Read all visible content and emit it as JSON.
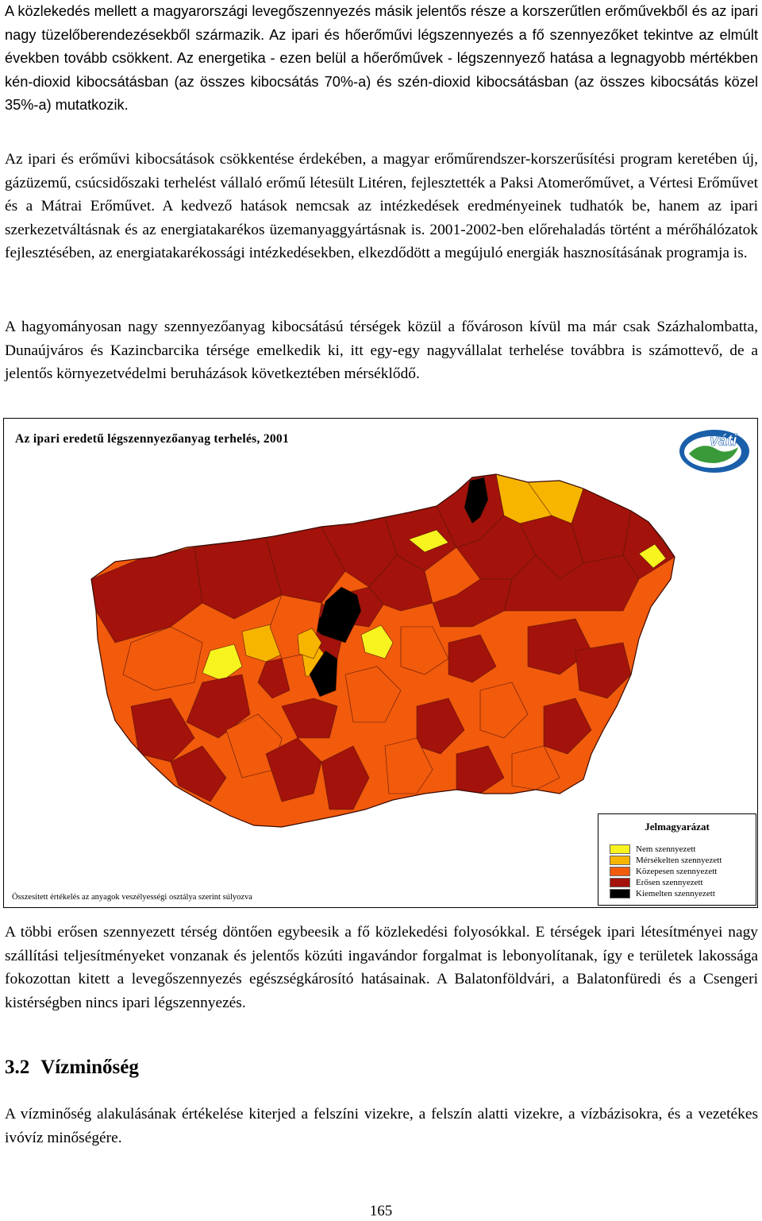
{
  "paragraphs": {
    "p1": "A közlekedés mellett a magyarországi levegőszennyezés másik jelentős része a korszerűtlen erőművekből és az ipari nagy tüzelőberendezésekből származik. Az ipari és hőerőművi légszennyezés a fő szennyezőket tekintve az elmúlt években tovább csökkent. Az energetika - ezen belül a hőerőművek - légszennyező hatása a legnagyobb mértékben kén-dioxid kibocsátásban (az összes kibocsátás 70%-a) és szén-dioxid kibocsátásban (az összes kibocsátás közel 35%-a) mutatkozik.",
    "p2": "Az ipari és erőművi kibocsátások csökkentése érdekében, a magyar erőműrendszer-korszerűsítési program keretében új, gázüzemű, csúcsidőszaki terhelést vállaló erőmű létesült Litéren, fejlesztették a Paksi Atomerőművet, a Vértesi Erőművet és a Mátrai Erőművet. A kedvező hatások nemcsak az intézkedések eredményeinek tudhatók be, hanem az ipari szerkezetváltásnak és az energiatakarékos üzemanyaggyártásnak is. 2001-2002-ben előrehaladás történt a mérőhálózatok fejlesztésében, az energiatakarékossági intézkedésekben, elkezdődött a megújuló energiák hasznosításának programja is.",
    "p3": "A hagyományosan nagy szennyezőanyag kibocsátású térségek közül a fővároson kívül ma már csak Százhalombatta, Dunaújváros és Kazincbarcika térsége emelkedik ki, itt egy-egy nagyvállalat terhelése továbbra is számottevő, de a jelentős környezetvédelmi beruházások következtében mérséklődő.",
    "p4": "A többi erősen szennyezett térség döntően egybeesik a fő közlekedési folyosókkal. E térségek ipari létesítményei nagy szállítási teljesítményeket vonzanak és jelentős közúti ingavándor forgalmat is lebonyolítanak, így e területek lakossága fokozottan kitett a levegőszennyezés egészségkárosító hatásainak. A Balatonföldvári, a Balatonfüredi és a Csengeri kistérségben nincs ipari légszennyezés.",
    "p5": "A vízminőség alakulásának értékelése kiterjed a felszíni vizekre, a felszín alatti vizekre, a vízbázisokra, és a vezetékes ivóvíz minőségére."
  },
  "figure": {
    "title": "Az ipari eredetű légszennyezőanyag terhelés, 2001",
    "logo_text": "váti",
    "note": "Összesített értékelés az anyagok veszélyességi osztálya szerint súlyozva",
    "legend": {
      "title": "Jelmagyarázat",
      "items": [
        {
          "label": "Nem szennyezett",
          "color": "#f7f31f"
        },
        {
          "label": "Mérsékelten szennyezett",
          "color": "#f7b500"
        },
        {
          "label": "Közepesen szennyezett",
          "color": "#f25a0c"
        },
        {
          "label": "Erősen szennyezett",
          "color": "#a3120b"
        },
        {
          "label": "Kiemelten szennyezett",
          "color": "#000000"
        }
      ]
    }
  },
  "section": {
    "number": "3.2",
    "title": "Vízminőség"
  },
  "page_number": "165"
}
